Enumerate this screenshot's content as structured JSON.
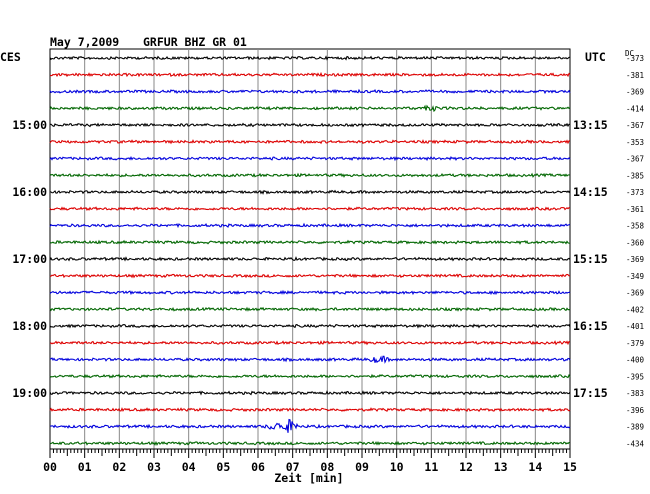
{
  "header": {
    "date": "May 7,2009",
    "station": "GRFUR BHZ GR 01",
    "left_tz": "CES",
    "right_tz": "UTC",
    "dc_label": "DC"
  },
  "chart_data": {
    "type": "line",
    "title": "May 7,2009   GRFUR BHZ GR 01",
    "xlabel": "Zeit [min]",
    "xlim": [
      0,
      15
    ],
    "x_ticks": [
      "00",
      "01",
      "02",
      "03",
      "04",
      "05",
      "06",
      "07",
      "08",
      "09",
      "10",
      "11",
      "12",
      "13",
      "14",
      "15"
    ],
    "trace_interval_min": 15,
    "trace_colors": [
      "#000000",
      "#dd0000",
      "#0000dd",
      "#006600"
    ],
    "left_hour_labels": [
      {
        "label": "15:00",
        "trace": 4
      },
      {
        "label": "16:00",
        "trace": 8
      },
      {
        "label": "17:00",
        "trace": 12
      },
      {
        "label": "18:00",
        "trace": 16
      },
      {
        "label": "19:00",
        "trace": 20
      }
    ],
    "right_hour_labels": [
      {
        "label": "13:15",
        "trace": 4
      },
      {
        "label": "14:15",
        "trace": 8
      },
      {
        "label": "15:15",
        "trace": 12
      },
      {
        "label": "16:15",
        "trace": 16
      },
      {
        "label": "17:15",
        "trace": 20
      }
    ],
    "dc_offsets": [
      -373,
      -381,
      -369,
      -414,
      -367,
      -353,
      -367,
      -385,
      -373,
      -361,
      -358,
      -360,
      -369,
      -349,
      -369,
      -402,
      -401,
      -379,
      -400,
      -395,
      -383,
      -396,
      -389,
      -434
    ],
    "events": [
      {
        "trace": 18,
        "minute": 9.5,
        "amplitude": 3
      },
      {
        "trace": 22,
        "minute": 6.9,
        "amplitude": 6
      },
      {
        "trace": 22,
        "minute": 6.5,
        "amplitude": 3
      },
      {
        "trace": 3,
        "minute": 11.0,
        "amplitude": 2
      }
    ]
  }
}
